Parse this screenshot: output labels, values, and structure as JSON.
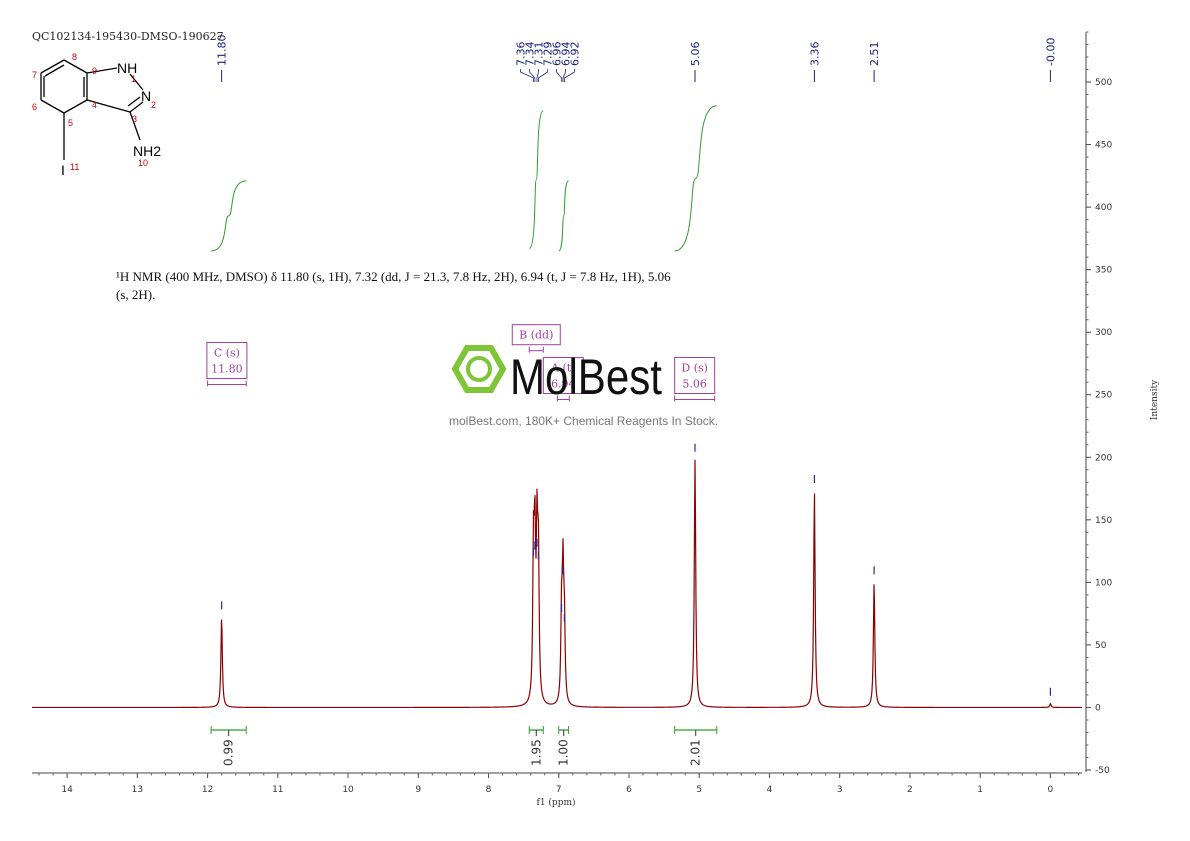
{
  "sample_id": "QC102134-195430-DMSO-190627",
  "nmr_description": "¹H NMR (400 MHz, DMSO) δ 11.80 (s, 1H), 7.32 (dd, J = 21.3, 7.8 Hz, 2H), 6.94 (t, J = 7.8 Hz, 1H), 5.06 (s, 2H).",
  "watermark": {
    "brand": "MolBest",
    "tagline": "molBest.com, 180K+ Chemical Reagents In Stock.",
    "color": "#7ec638"
  },
  "structure": {
    "atom_labels": [
      "NH",
      "N",
      "NH2",
      "I"
    ],
    "locants": [
      "1",
      "2",
      "3",
      "4",
      "5",
      "6",
      "7",
      "8",
      "9",
      "10",
      "11"
    ]
  },
  "colors": {
    "spectrum": "#8b0000",
    "integral": "#2e9e2e",
    "multiplet": "#a040a0",
    "peak_label": "#1a237e",
    "locant": "#cc0000"
  },
  "chart_data": {
    "type": "line",
    "xlabel": "f1 (ppm)",
    "ylabel": "Intensity",
    "xlim": [
      14.5,
      -0.45
    ],
    "ylim": [
      -50,
      540
    ],
    "x_ticks": [
      14,
      13,
      12,
      11,
      10,
      9,
      8,
      7,
      6,
      5,
      4,
      3,
      2,
      1,
      0
    ],
    "y_ticks": [
      -50,
      0,
      50,
      100,
      150,
      200,
      250,
      300,
      350,
      400,
      450,
      500
    ],
    "peaks": [
      {
        "ppm": 11.8,
        "height": 72
      },
      {
        "ppm": 7.36,
        "height": 115
      },
      {
        "ppm": 7.34,
        "height": 120
      },
      {
        "ppm": 7.31,
        "height": 122
      },
      {
        "ppm": 7.29,
        "height": 112
      },
      {
        "ppm": 6.96,
        "height": 70
      },
      {
        "ppm": 6.94,
        "height": 100
      },
      {
        "ppm": 6.92,
        "height": 62
      },
      {
        "ppm": 5.06,
        "height": 198
      },
      {
        "ppm": 3.36,
        "height": 173
      },
      {
        "ppm": 2.51,
        "height": 100
      },
      {
        "ppm": 0.0,
        "height": 3
      }
    ],
    "peak_labels": [
      {
        "group": [
          11.8
        ],
        "texts": [
          "11.80"
        ]
      },
      {
        "group": [
          7.36,
          7.34,
          7.31,
          7.29,
          6.96,
          6.94,
          6.92
        ],
        "texts": [
          "7.36",
          "7.34",
          "7.31",
          "7.29",
          "6.96",
          "6.94",
          "6.92"
        ]
      },
      {
        "group": [
          5.06
        ],
        "texts": [
          "5.06"
        ]
      },
      {
        "group": [
          3.36
        ],
        "texts": [
          "3.36"
        ]
      },
      {
        "group": [
          2.51
        ],
        "texts": [
          "2.51"
        ]
      },
      {
        "group": [
          0.0
        ],
        "texts": [
          "-0.00"
        ]
      }
    ],
    "integrals": [
      {
        "from": 11.95,
        "to": 11.45,
        "value_text": "0.99",
        "bottom": 365,
        "top": 421
      },
      {
        "from": 7.42,
        "to": 7.22,
        "value_text": "1.95",
        "bottom": 367,
        "top": 477
      },
      {
        "from": 7.0,
        "to": 6.86,
        "value_text": "1.00",
        "bottom": 365,
        "top": 421
      },
      {
        "from": 5.35,
        "to": 4.75,
        "value_text": "2.01",
        "bottom": 365,
        "top": 481
      }
    ],
    "multiplets": [
      {
        "label": "C (s)",
        "value": "11.80",
        "from": 12.0,
        "to": 11.45,
        "box_y": 263
      },
      {
        "label": "B (dd)",
        "value": "",
        "from": 7.42,
        "to": 7.22,
        "box_y": 290
      },
      {
        "label": "A (t)",
        "value": "6.94",
        "from": 7.02,
        "to": 6.85,
        "box_y": 251
      },
      {
        "label": "D (s)",
        "value": "5.06",
        "from": 5.35,
        "to": 4.78,
        "box_y": 251
      }
    ]
  }
}
